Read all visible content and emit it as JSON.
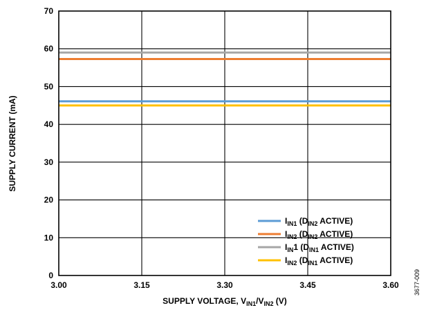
{
  "chart_data": {
    "type": "line",
    "x": [
      3.0,
      3.6
    ],
    "xlim": [
      3.0,
      3.6
    ],
    "ylim": [
      0,
      70
    ],
    "xticks": [
      {
        "value": 3.0,
        "label": "3.00"
      },
      {
        "value": 3.15,
        "label": "3.15"
      },
      {
        "value": 3.3,
        "label": "3.30"
      },
      {
        "value": 3.45,
        "label": "3.45"
      },
      {
        "value": 3.6,
        "label": "3.60"
      }
    ],
    "yticks": [
      {
        "value": 0,
        "label": "0"
      },
      {
        "value": 10,
        "label": "10"
      },
      {
        "value": 20,
        "label": "20"
      },
      {
        "value": 30,
        "label": "30"
      },
      {
        "value": 40,
        "label": "40"
      },
      {
        "value": 50,
        "label": "50"
      },
      {
        "value": 60,
        "label": "60"
      },
      {
        "value": 70,
        "label": "70"
      }
    ],
    "ylabel": "SUPPLY CURRENT (mA)",
    "xlabel": {
      "pre": "SUPPLY VOLTAGE, V",
      "sub1": "IN1",
      "mid": "/V",
      "sub2": "IN2",
      "post": " (V)"
    },
    "grid": true,
    "legend_position": "bottom-right",
    "series": [
      {
        "values": [
          59.0,
          59.0
        ],
        "color": "#a6a6a6",
        "legend": {
          "a": "I",
          "a_sub": "IN",
          "b": "1 (D",
          "b_sub": "IN1",
          "c": " ACTIVE)"
        }
      },
      {
        "values": [
          57.3,
          57.3
        ],
        "color": "#ed7d31",
        "legend": {
          "a": "I",
          "a_sub": "IN2",
          "b": " (D",
          "b_sub": "IN2",
          "c": " ACTIVE)"
        }
      },
      {
        "values": [
          46.1,
          46.1
        ],
        "color": "#5b9bd5",
        "legend": {
          "a": "I",
          "a_sub": "IN1",
          "b": " (D",
          "b_sub": "IN2",
          "c": " ACTIVE)"
        }
      },
      {
        "values": [
          45.0,
          45.0
        ],
        "color": "#ffc000",
        "legend": {
          "a": "I",
          "a_sub": "IN2",
          "b": " (D",
          "b_sub": "IN1",
          "c": " ACTIVE)"
        }
      }
    ],
    "legend_order": [
      2,
      1,
      0,
      3
    ]
  },
  "figure_id": "3677-009"
}
